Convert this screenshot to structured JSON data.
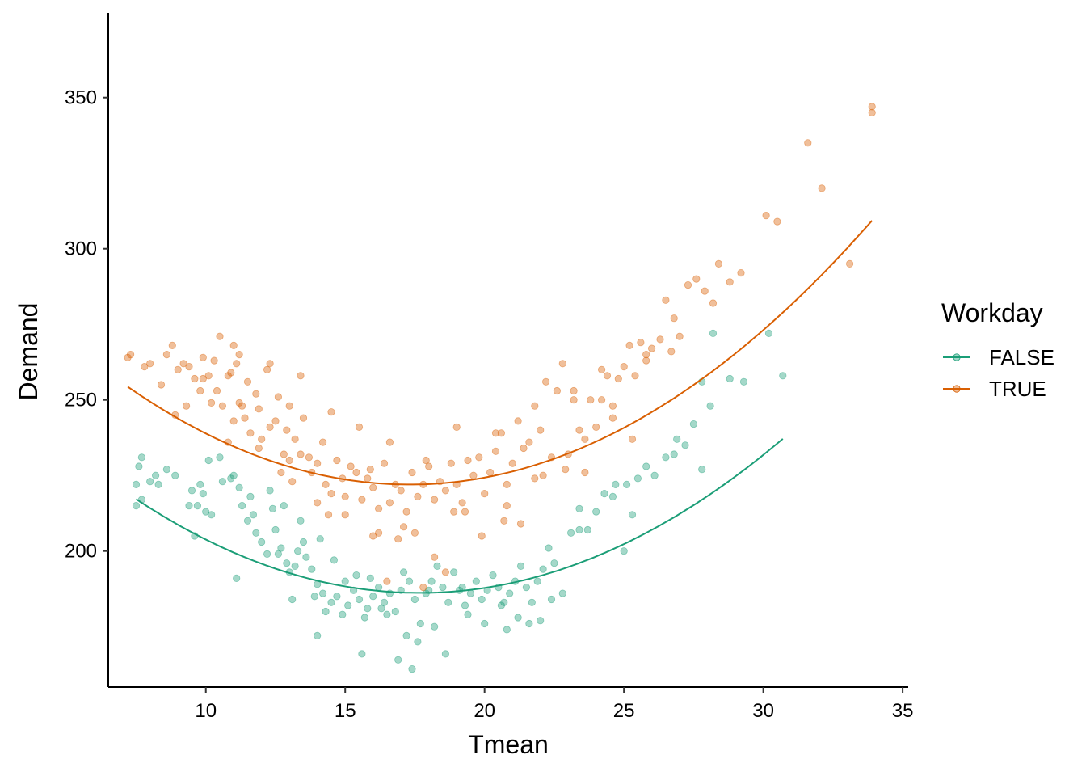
{
  "chart_data": {
    "type": "scatter",
    "title": "",
    "xlabel": "Tmean",
    "ylabel": "Demand",
    "xlim": [
      6.5,
      35.2
    ],
    "ylim": [
      155,
      378
    ],
    "x_ticks": [
      10,
      15,
      20,
      25,
      30,
      35
    ],
    "y_ticks": [
      200,
      250,
      300,
      350
    ],
    "grid": false,
    "legend": {
      "title": "Workday",
      "position": "right"
    },
    "series": [
      {
        "name": "FALSE",
        "color": "#1b9e77",
        "points": [
          [
            7.5,
            222
          ],
          [
            7.6,
            228
          ],
          [
            7.7,
            231
          ],
          [
            7.5,
            215
          ],
          [
            7.7,
            217
          ],
          [
            8.0,
            223
          ],
          [
            8.2,
            225
          ],
          [
            8.6,
            227
          ],
          [
            8.9,
            225
          ],
          [
            8.3,
            222
          ],
          [
            9.4,
            215
          ],
          [
            9.5,
            220
          ],
          [
            9.8,
            222
          ],
          [
            9.9,
            219
          ],
          [
            10.0,
            213
          ],
          [
            9.6,
            205
          ],
          [
            10.1,
            230
          ],
          [
            10.5,
            231
          ],
          [
            10.6,
            223
          ],
          [
            10.9,
            224
          ],
          [
            11.0,
            225
          ],
          [
            11.2,
            221
          ],
          [
            11.3,
            215
          ],
          [
            11.5,
            210
          ],
          [
            11.7,
            212
          ],
          [
            11.8,
            206
          ],
          [
            12.0,
            203
          ],
          [
            12.2,
            199
          ],
          [
            11.6,
            218
          ],
          [
            12.4,
            214
          ],
          [
            12.5,
            207
          ],
          [
            12.7,
            201
          ],
          [
            12.9,
            196
          ],
          [
            13.0,
            193
          ],
          [
            13.2,
            195
          ],
          [
            13.3,
            200
          ],
          [
            13.5,
            203
          ],
          [
            13.6,
            198
          ],
          [
            13.8,
            194
          ],
          [
            14.0,
            189
          ],
          [
            14.2,
            186
          ],
          [
            14.3,
            180
          ],
          [
            14.5,
            183
          ],
          [
            14.7,
            185
          ],
          [
            14.9,
            179
          ],
          [
            15.1,
            182
          ],
          [
            15.3,
            187
          ],
          [
            15.5,
            184
          ],
          [
            15.7,
            178
          ],
          [
            15.8,
            181
          ],
          [
            16.0,
            185
          ],
          [
            16.2,
            188
          ],
          [
            16.4,
            183
          ],
          [
            16.6,
            186
          ],
          [
            16.8,
            180
          ],
          [
            17.0,
            187
          ],
          [
            17.1,
            193
          ],
          [
            17.3,
            190
          ],
          [
            17.5,
            184
          ],
          [
            17.7,
            176
          ],
          [
            17.9,
            186
          ],
          [
            18.1,
            190
          ],
          [
            18.3,
            195
          ],
          [
            18.5,
            188
          ],
          [
            18.7,
            183
          ],
          [
            18.9,
            193
          ],
          [
            19.1,
            187
          ],
          [
            19.3,
            182
          ],
          [
            19.5,
            186
          ],
          [
            19.7,
            190
          ],
          [
            19.9,
            184
          ],
          [
            20.1,
            187
          ],
          [
            20.3,
            192
          ],
          [
            20.5,
            188
          ],
          [
            20.7,
            183
          ],
          [
            20.9,
            186
          ],
          [
            21.1,
            190
          ],
          [
            21.3,
            195
          ],
          [
            21.5,
            188
          ],
          [
            21.7,
            183
          ],
          [
            21.9,
            190
          ],
          [
            22.1,
            194
          ],
          [
            22.3,
            201
          ],
          [
            22.5,
            196
          ],
          [
            22.8,
            186
          ],
          [
            23.1,
            206
          ],
          [
            23.4,
            214
          ],
          [
            23.7,
            207
          ],
          [
            24.0,
            213
          ],
          [
            24.3,
            219
          ],
          [
            24.7,
            222
          ],
          [
            25.1,
            222
          ],
          [
            25.5,
            224
          ],
          [
            25.8,
            228
          ],
          [
            26.1,
            225
          ],
          [
            26.5,
            231
          ],
          [
            26.9,
            237
          ],
          [
            27.2,
            235
          ],
          [
            27.5,
            242
          ],
          [
            27.8,
            256
          ],
          [
            28.1,
            248
          ],
          [
            28.2,
            272
          ],
          [
            28.8,
            257
          ],
          [
            29.3,
            256
          ],
          [
            30.2,
            272
          ],
          [
            30.7,
            258
          ],
          [
            12.3,
            220
          ],
          [
            12.8,
            215
          ],
          [
            13.4,
            210
          ],
          [
            14.1,
            204
          ],
          [
            14.6,
            197
          ],
          [
            15.0,
            190
          ],
          [
            15.4,
            192
          ],
          [
            15.9,
            191
          ],
          [
            16.5,
            179
          ],
          [
            17.2,
            172
          ],
          [
            16.9,
            164
          ],
          [
            17.6,
            170
          ],
          [
            18.2,
            175
          ],
          [
            18.6,
            166
          ],
          [
            15.6,
            166
          ],
          [
            14.0,
            172
          ],
          [
            13.1,
            184
          ],
          [
            19.4,
            179
          ],
          [
            20.0,
            176
          ],
          [
            20.8,
            174
          ],
          [
            21.2,
            178
          ],
          [
            22.0,
            177
          ],
          [
            22.4,
            184
          ],
          [
            25.0,
            200
          ],
          [
            25.3,
            212
          ],
          [
            26.8,
            232
          ],
          [
            27.8,
            227
          ],
          [
            10.2,
            212
          ],
          [
            9.7,
            215
          ],
          [
            11.1,
            191
          ],
          [
            12.6,
            199
          ],
          [
            13.9,
            185
          ],
          [
            16.3,
            181
          ],
          [
            18.0,
            187
          ],
          [
            19.2,
            188
          ],
          [
            20.6,
            182
          ],
          [
            21.6,
            176
          ],
          [
            23.4,
            207
          ],
          [
            24.6,
            218
          ],
          [
            17.4,
            161
          ]
        ]
      },
      {
        "name": "TRUE",
        "color": "#d95f02",
        "points": [
          [
            7.2,
            264
          ],
          [
            7.3,
            265
          ],
          [
            7.8,
            261
          ],
          [
            8.0,
            262
          ],
          [
            8.4,
            255
          ],
          [
            8.6,
            265
          ],
          [
            8.8,
            268
          ],
          [
            9.0,
            260
          ],
          [
            9.2,
            262
          ],
          [
            9.4,
            261
          ],
          [
            9.6,
            257
          ],
          [
            9.8,
            253
          ],
          [
            9.9,
            264
          ],
          [
            10.1,
            258
          ],
          [
            10.2,
            249
          ],
          [
            10.3,
            263
          ],
          [
            10.4,
            253
          ],
          [
            10.6,
            248
          ],
          [
            10.8,
            258
          ],
          [
            10.9,
            259
          ],
          [
            11.0,
            243
          ],
          [
            11.1,
            262
          ],
          [
            11.2,
            265
          ],
          [
            11.3,
            248
          ],
          [
            11.4,
            244
          ],
          [
            11.5,
            256
          ],
          [
            11.6,
            239
          ],
          [
            11.8,
            252
          ],
          [
            11.9,
            247
          ],
          [
            12.0,
            237
          ],
          [
            12.2,
            260
          ],
          [
            12.3,
            241
          ],
          [
            12.5,
            243
          ],
          [
            12.6,
            251
          ],
          [
            12.8,
            232
          ],
          [
            12.9,
            240
          ],
          [
            13.0,
            230
          ],
          [
            13.2,
            237
          ],
          [
            13.4,
            232
          ],
          [
            13.5,
            244
          ],
          [
            13.7,
            231
          ],
          [
            13.8,
            226
          ],
          [
            14.0,
            229
          ],
          [
            14.2,
            236
          ],
          [
            14.3,
            222
          ],
          [
            14.5,
            219
          ],
          [
            14.7,
            230
          ],
          [
            14.9,
            224
          ],
          [
            15.0,
            218
          ],
          [
            15.2,
            228
          ],
          [
            15.4,
            226
          ],
          [
            15.6,
            217
          ],
          [
            15.8,
            224
          ],
          [
            16.0,
            221
          ],
          [
            16.2,
            214
          ],
          [
            16.4,
            229
          ],
          [
            16.6,
            216
          ],
          [
            16.8,
            222
          ],
          [
            17.0,
            220
          ],
          [
            17.2,
            213
          ],
          [
            17.4,
            226
          ],
          [
            17.6,
            218
          ],
          [
            17.8,
            222
          ],
          [
            18.0,
            228
          ],
          [
            18.2,
            217
          ],
          [
            18.4,
            223
          ],
          [
            18.6,
            220
          ],
          [
            18.8,
            229
          ],
          [
            19.0,
            222
          ],
          [
            19.2,
            216
          ],
          [
            19.4,
            230
          ],
          [
            19.6,
            225
          ],
          [
            19.8,
            231
          ],
          [
            20.0,
            219
          ],
          [
            20.2,
            226
          ],
          [
            20.4,
            233
          ],
          [
            20.6,
            239
          ],
          [
            20.8,
            222
          ],
          [
            21.0,
            229
          ],
          [
            21.2,
            243
          ],
          [
            21.4,
            234
          ],
          [
            21.6,
            236
          ],
          [
            21.8,
            224
          ],
          [
            22.0,
            240
          ],
          [
            22.2,
            256
          ],
          [
            22.4,
            231
          ],
          [
            22.6,
            253
          ],
          [
            22.8,
            262
          ],
          [
            23.0,
            232
          ],
          [
            23.2,
            253
          ],
          [
            23.4,
            240
          ],
          [
            23.6,
            237
          ],
          [
            23.8,
            250
          ],
          [
            24.0,
            241
          ],
          [
            24.2,
            250
          ],
          [
            24.4,
            258
          ],
          [
            24.6,
            248
          ],
          [
            24.8,
            257
          ],
          [
            25.0,
            261
          ],
          [
            25.2,
            268
          ],
          [
            25.4,
            258
          ],
          [
            25.6,
            269
          ],
          [
            25.8,
            263
          ],
          [
            26.0,
            267
          ],
          [
            26.3,
            270
          ],
          [
            26.5,
            283
          ],
          [
            26.7,
            266
          ],
          [
            27.0,
            271
          ],
          [
            27.3,
            288
          ],
          [
            27.6,
            290
          ],
          [
            27.9,
            286
          ],
          [
            28.2,
            282
          ],
          [
            28.4,
            295
          ],
          [
            28.8,
            289
          ],
          [
            29.2,
            292
          ],
          [
            30.1,
            311
          ],
          [
            30.5,
            309
          ],
          [
            31.6,
            335
          ],
          [
            32.1,
            320
          ],
          [
            33.1,
            295
          ],
          [
            33.9,
            347
          ],
          [
            33.9,
            345
          ],
          [
            10.5,
            271
          ],
          [
            11.0,
            268
          ],
          [
            12.3,
            262
          ],
          [
            13.4,
            258
          ],
          [
            14.5,
            246
          ],
          [
            15.5,
            241
          ],
          [
            16.6,
            236
          ],
          [
            17.9,
            230
          ],
          [
            19.0,
            241
          ],
          [
            20.4,
            239
          ],
          [
            21.8,
            248
          ],
          [
            23.2,
            250
          ],
          [
            24.2,
            260
          ],
          [
            25.8,
            265
          ],
          [
            26.8,
            277
          ],
          [
            9.3,
            248
          ],
          [
            10.8,
            236
          ],
          [
            11.9,
            234
          ],
          [
            13.1,
            223
          ],
          [
            14.0,
            216
          ],
          [
            15.0,
            212
          ],
          [
            16.0,
            205
          ],
          [
            16.5,
            190
          ],
          [
            16.9,
            204
          ],
          [
            17.5,
            206
          ],
          [
            17.8,
            188
          ],
          [
            18.2,
            198
          ],
          [
            18.6,
            193
          ],
          [
            19.3,
            213
          ],
          [
            19.9,
            205
          ],
          [
            20.8,
            215
          ],
          [
            21.3,
            209
          ],
          [
            22.1,
            225
          ],
          [
            22.9,
            227
          ],
          [
            23.6,
            226
          ],
          [
            24.6,
            244
          ],
          [
            25.3,
            237
          ],
          [
            16.2,
            206
          ],
          [
            14.4,
            212
          ],
          [
            12.7,
            226
          ],
          [
            11.2,
            249
          ],
          [
            9.9,
            257
          ],
          [
            8.9,
            245
          ],
          [
            13.0,
            248
          ],
          [
            15.9,
            227
          ],
          [
            17.1,
            208
          ],
          [
            18.9,
            213
          ],
          [
            20.7,
            210
          ]
        ]
      }
    ],
    "fits": [
      {
        "name": "FALSE",
        "x_range": [
          7.5,
          30.7
        ],
        "coeffs": [
          0.3,
          -10.6,
          279.8
        ]
      },
      {
        "name": "TRUE",
        "x_range": [
          7.2,
          33.9
        ],
        "coeffs": [
          0.317,
          -10.97,
          316.9
        ]
      }
    ]
  }
}
